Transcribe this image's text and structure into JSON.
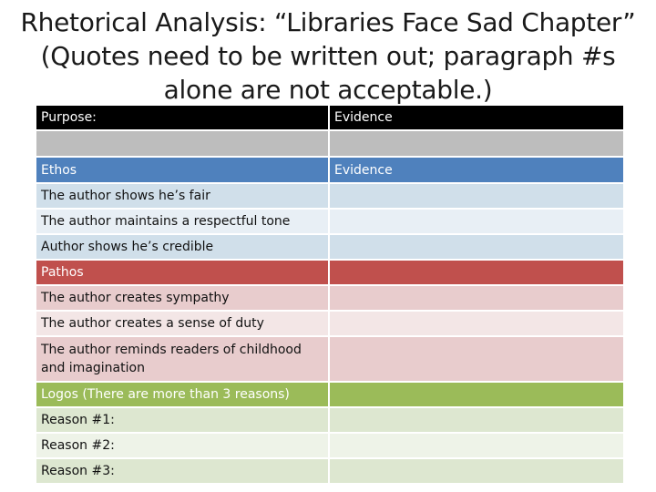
{
  "title": {
    "line1": "Rhetorical Analysis: “Libraries Face Sad Chapter”",
    "line2": "(Quotes need to be written out; paragraph #s",
    "line3": "alone are not acceptable.)"
  },
  "table": {
    "header": {
      "left": "Purpose:",
      "right": "Evidence"
    },
    "ethos": {
      "heading": "Ethos",
      "evidence": "Evidence",
      "rows": [
        "The author shows he’s fair",
        "The author maintains a respectful tone",
        "Author shows he’s credible"
      ]
    },
    "pathos": {
      "heading": "Pathos",
      "rows": [
        "The author creates sympathy",
        "The author creates a sense of duty",
        "The author reminds readers of childhood and imagination"
      ]
    },
    "logos": {
      "heading": "Logos (There are more than 3 reasons)",
      "rows": [
        "Reason #1:",
        "Reason #2:",
        "Reason #3:"
      ]
    }
  },
  "colors": {
    "header": "#000000",
    "ethos": "#4f81bd",
    "pathos": "#c0504d",
    "logos": "#9bbb59"
  }
}
